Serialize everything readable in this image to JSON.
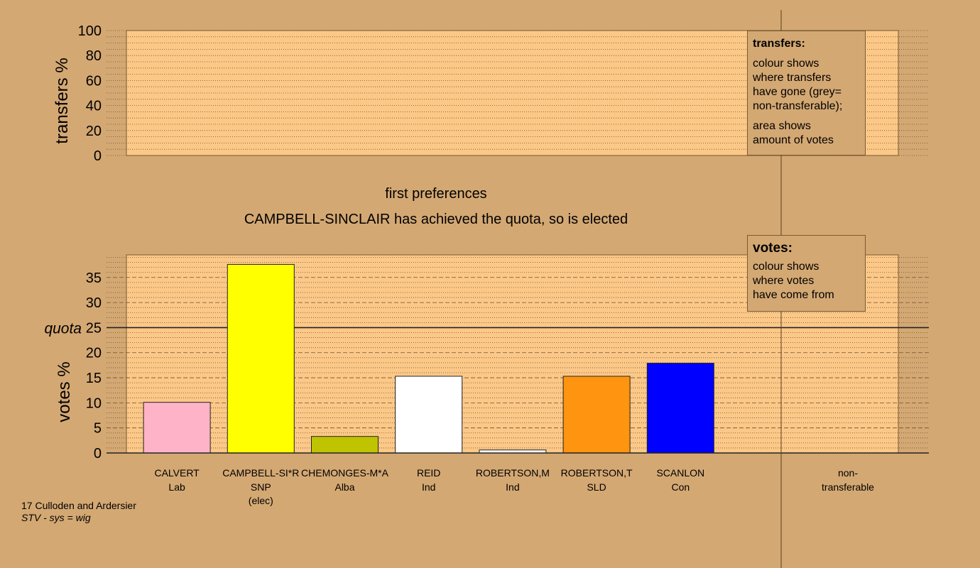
{
  "header": {
    "stage_label": "first preferences",
    "status_text": "CAMPBELL-SINCLAIR has achieved the quota, so is elected"
  },
  "transfers_legend": {
    "title": "transfers:",
    "line1": "colour shows",
    "line2": "where transfers",
    "line3": "have gone (grey=",
    "line4": "non-transferable);",
    "line5": "area shows",
    "line6": "amount of votes"
  },
  "votes_legend": {
    "title": "votes:",
    "line1": "colour shows",
    "line2": "where votes",
    "line3": "have come from"
  },
  "footer": {
    "ward": "17 Culloden and Ardersier",
    "system": "STV - sys = wig"
  },
  "colors": {
    "background": "#d4a873",
    "plot_fill": "#fcc888",
    "axis": "#000000"
  },
  "chart_data": [
    {
      "type": "bar",
      "ylabel": "transfers %",
      "ylim": [
        0,
        100
      ],
      "yticks": [
        0,
        20,
        40,
        60,
        80,
        100
      ],
      "values": []
    },
    {
      "type": "bar",
      "ylabel": "votes %",
      "ylim": [
        0,
        39.5
      ],
      "yticks": [
        0,
        5,
        10,
        15,
        20,
        25,
        30,
        35
      ],
      "quota": 25,
      "quota_label": "quota",
      "categories": [
        {
          "name": "CALVERT",
          "party": "Lab",
          "note": "",
          "value": 10.1,
          "color": "#ffb3c8"
        },
        {
          "name": "CAMPBELL-SI*R",
          "party": "SNP",
          "note": "(elec)",
          "value": 37.6,
          "color": "#ffff00"
        },
        {
          "name": "CHEMONGES-M*A",
          "party": "Alba",
          "note": "",
          "value": 3.3,
          "color": "#bfc300"
        },
        {
          "name": "REID",
          "party": "Ind",
          "note": "",
          "value": 15.3,
          "color": "#ffffff"
        },
        {
          "name": "ROBERTSON,M",
          "party": "Ind",
          "note": "",
          "value": 0.6,
          "color": "#ffffff"
        },
        {
          "name": "ROBERTSON,T",
          "party": "SLD",
          "note": "",
          "value": 15.3,
          "color": "#ff9410"
        },
        {
          "name": "SCANLON",
          "party": "Con",
          "note": "",
          "value": 17.9,
          "color": "#0000ff"
        }
      ],
      "nontransferable": {
        "label1": "non-",
        "label2": "transferable",
        "value": 0
      }
    }
  ]
}
